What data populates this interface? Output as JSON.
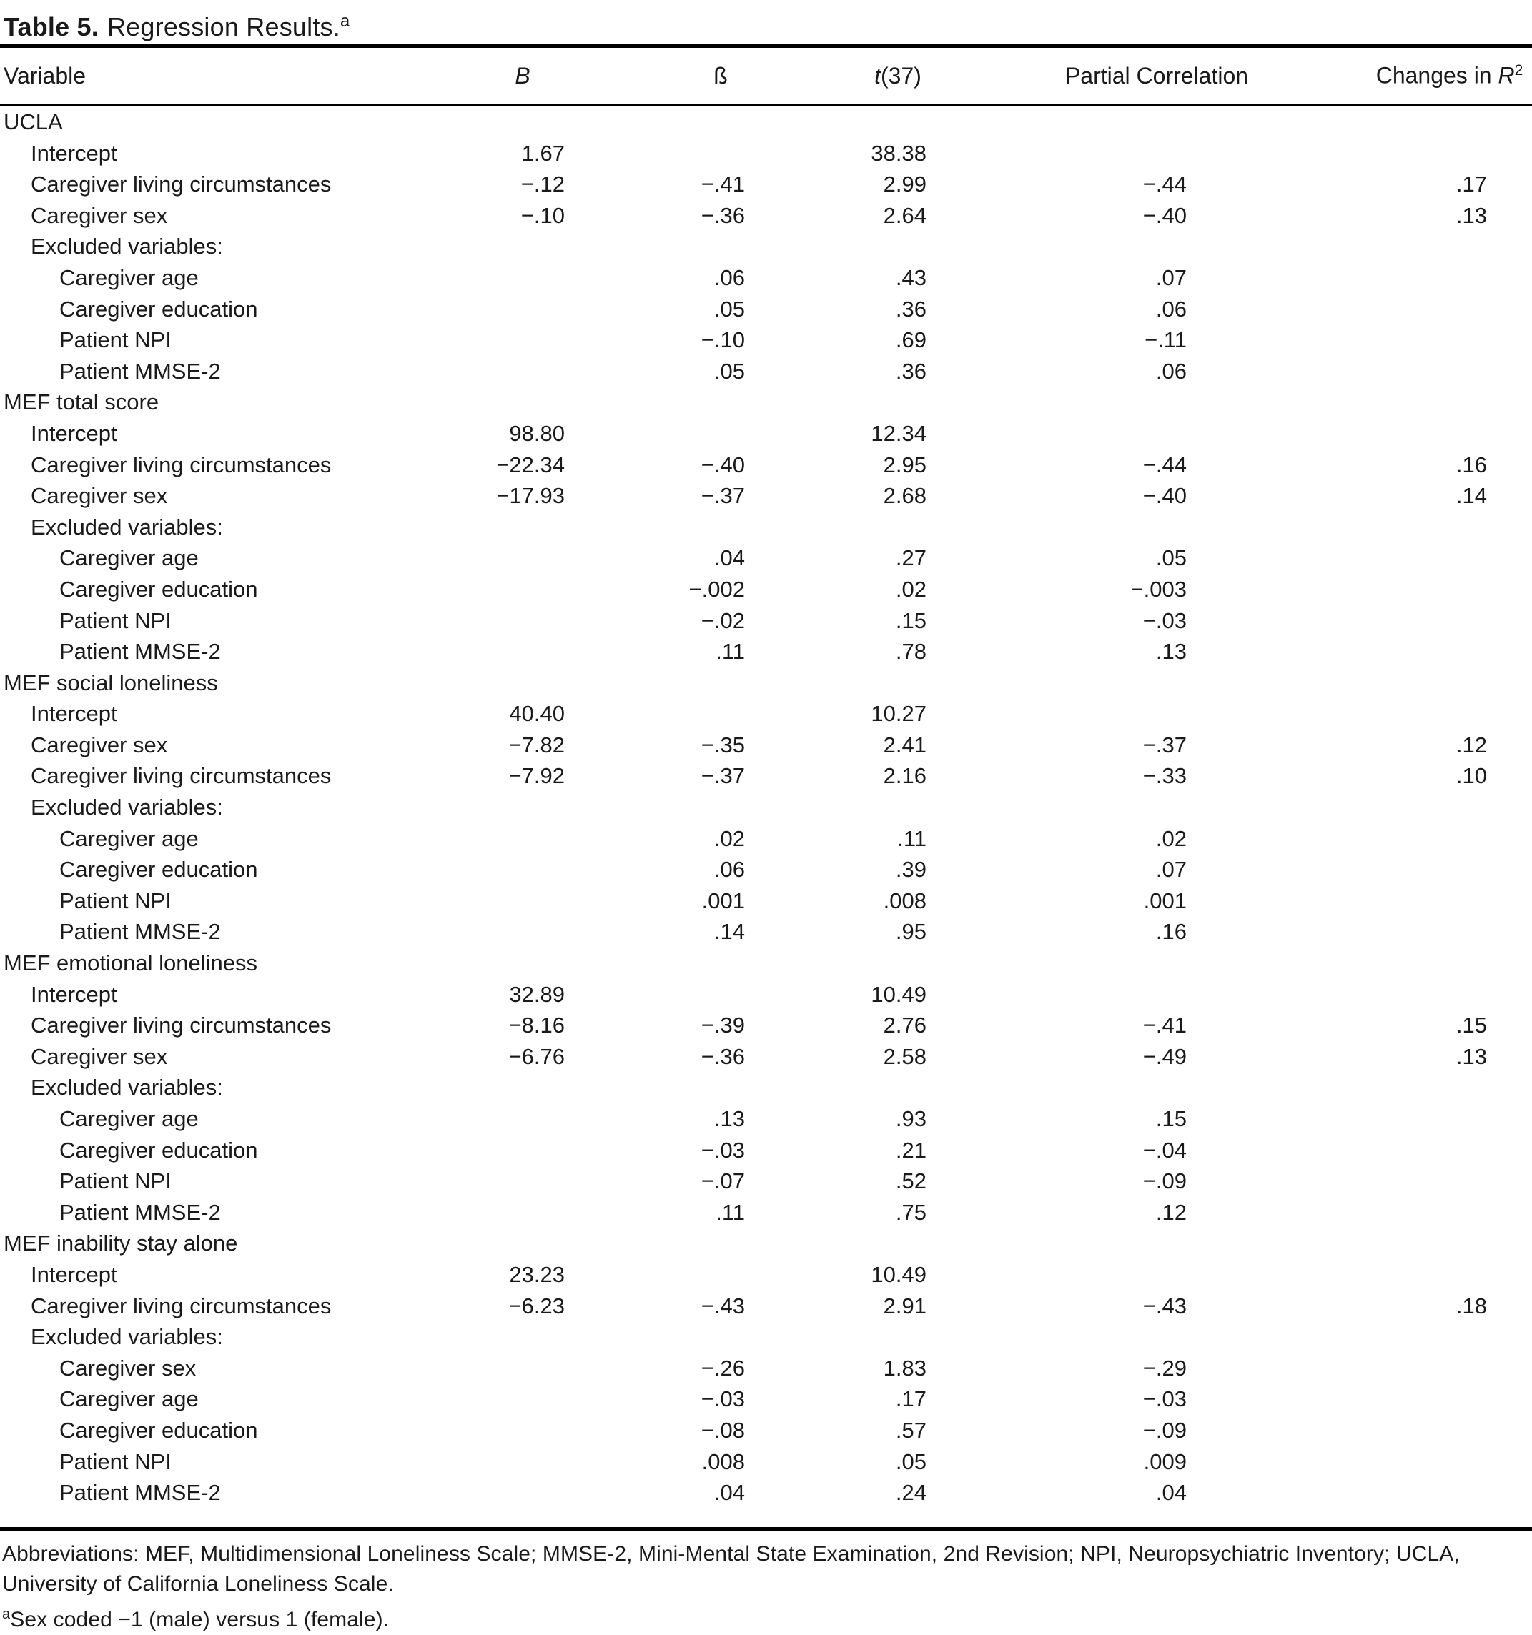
{
  "colors": {
    "ink": "#1a1a1a",
    "background": "#ffffff"
  },
  "title": {
    "label": "Table 5.",
    "caption": "Regression Results.",
    "footnote_marker": "a"
  },
  "table": {
    "columns": {
      "variable": "Variable",
      "b": "B",
      "beta": "ß",
      "t_symbol": "t",
      "t_args": "(37)",
      "partial": "Partial Correlation",
      "r2_prefix": "Changes in ",
      "r2_symbol": "R",
      "r2_sup": "2"
    },
    "rows": [
      {
        "label": "UCLA",
        "indent": 0
      },
      {
        "label": "Intercept",
        "indent": 1,
        "b": "1.67",
        "t": "38.38"
      },
      {
        "label": "Caregiver living circumstances",
        "indent": 1,
        "b": "−.12",
        "beta": "−.41",
        "t": "2.99",
        "pc": "−.44",
        "r2": ".17"
      },
      {
        "label": "Caregiver sex",
        "indent": 1,
        "b": "−.10",
        "beta": "−.36",
        "t": "2.64",
        "pc": "−.40",
        "r2": ".13"
      },
      {
        "label": "Excluded variables:",
        "indent": 1
      },
      {
        "label": "Caregiver age",
        "indent": 2,
        "beta": ".06",
        "t": ".43",
        "pc": ".07"
      },
      {
        "label": "Caregiver education",
        "indent": 2,
        "beta": ".05",
        "t": ".36",
        "pc": ".06"
      },
      {
        "label": "Patient NPI",
        "indent": 2,
        "beta": "−.10",
        "t": ".69",
        "pc": "−.11"
      },
      {
        "label": "Patient MMSE-2",
        "indent": 2,
        "beta": ".05",
        "t": ".36",
        "pc": ".06"
      },
      {
        "label": "MEF total score",
        "indent": 0
      },
      {
        "label": "Intercept",
        "indent": 1,
        "b": "98.80",
        "t": "12.34"
      },
      {
        "label": "Caregiver living circumstances",
        "indent": 1,
        "b": "−22.34",
        "beta": "−.40",
        "t": "2.95",
        "pc": "−.44",
        "r2": ".16"
      },
      {
        "label": "Caregiver sex",
        "indent": 1,
        "b": "−17.93",
        "beta": "−.37",
        "t": "2.68",
        "pc": "−.40",
        "r2": ".14"
      },
      {
        "label": "Excluded variables:",
        "indent": 1
      },
      {
        "label": "Caregiver age",
        "indent": 2,
        "beta": ".04",
        "t": ".27",
        "pc": ".05"
      },
      {
        "label": "Caregiver education",
        "indent": 2,
        "beta": "−.002",
        "t": ".02",
        "pc": "−.003"
      },
      {
        "label": "Patient NPI",
        "indent": 2,
        "beta": "−.02",
        "t": ".15",
        "pc": "−.03"
      },
      {
        "label": "Patient MMSE-2",
        "indent": 2,
        "beta": ".11",
        "t": ".78",
        "pc": ".13"
      },
      {
        "label": "MEF social loneliness",
        "indent": 0
      },
      {
        "label": "Intercept",
        "indent": 1,
        "b": "40.40",
        "t": "10.27"
      },
      {
        "label": "Caregiver sex",
        "indent": 1,
        "b": "−7.82",
        "beta": "−.35",
        "t": "2.41",
        "pc": "−.37",
        "r2": ".12"
      },
      {
        "label": "Caregiver living circumstances",
        "indent": 1,
        "b": "−7.92",
        "beta": "−.37",
        "t": "2.16",
        "pc": "−.33",
        "r2": ".10"
      },
      {
        "label": "Excluded variables:",
        "indent": 1
      },
      {
        "label": "Caregiver age",
        "indent": 2,
        "beta": ".02",
        "t": ".11",
        "pc": ".02"
      },
      {
        "label": "Caregiver education",
        "indent": 2,
        "beta": ".06",
        "t": ".39",
        "pc": ".07"
      },
      {
        "label": "Patient NPI",
        "indent": 2,
        "beta": ".001",
        "t": ".008",
        "pc": ".001"
      },
      {
        "label": "Patient MMSE-2",
        "indent": 2,
        "beta": ".14",
        "t": ".95",
        "pc": ".16"
      },
      {
        "label": "MEF emotional loneliness",
        "indent": 0
      },
      {
        "label": "Intercept",
        "indent": 1,
        "b": "32.89",
        "t": "10.49"
      },
      {
        "label": "Caregiver living circumstances",
        "indent": 1,
        "b": "−8.16",
        "beta": "−.39",
        "t": "2.76",
        "pc": "−.41",
        "r2": ".15"
      },
      {
        "label": "Caregiver sex",
        "indent": 1,
        "b": "−6.76",
        "beta": "−.36",
        "t": "2.58",
        "pc": "−.49",
        "r2": ".13"
      },
      {
        "label": "Excluded variables:",
        "indent": 1
      },
      {
        "label": "Caregiver age",
        "indent": 2,
        "beta": ".13",
        "t": ".93",
        "pc": ".15"
      },
      {
        "label": "Caregiver education",
        "indent": 2,
        "beta": "−.03",
        "t": ".21",
        "pc": "−.04"
      },
      {
        "label": "Patient NPI",
        "indent": 2,
        "beta": "−.07",
        "t": ".52",
        "pc": "−.09"
      },
      {
        "label": "Patient MMSE-2",
        "indent": 2,
        "beta": ".11",
        "t": ".75",
        "pc": ".12"
      },
      {
        "label": "MEF inability stay alone",
        "indent": 0
      },
      {
        "label": "Intercept",
        "indent": 1,
        "b": "23.23",
        "t": "10.49"
      },
      {
        "label": "Caregiver living circumstances",
        "indent": 1,
        "b": "−6.23",
        "beta": "−.43",
        "t": "2.91",
        "pc": "−.43",
        "r2": ".18"
      },
      {
        "label": "Excluded variables:",
        "indent": 1
      },
      {
        "label": "Caregiver sex",
        "indent": 2,
        "beta": "−.26",
        "t": "1.83",
        "pc": "−.29"
      },
      {
        "label": "Caregiver age",
        "indent": 2,
        "beta": "−.03",
        "t": ".17",
        "pc": "−.03"
      },
      {
        "label": "Caregiver education",
        "indent": 2,
        "beta": "−.08",
        "t": ".57",
        "pc": "−.09"
      },
      {
        "label": "Patient NPI",
        "indent": 2,
        "beta": ".008",
        "t": ".05",
        "pc": ".009"
      },
      {
        "label": "Patient MMSE-2",
        "indent": 2,
        "beta": ".04",
        "t": ".24",
        "pc": ".04"
      }
    ]
  },
  "footnotes": {
    "abbreviations": "Abbreviations: MEF, Multidimensional Loneliness Scale; MMSE-2, Mini-Mental State Examination, 2nd Revision; NPI, Neuropsychiatric Inventory; UCLA, University of California Loneliness Scale.",
    "marker": "a",
    "sex_coding": "Sex coded −1 (male) versus 1 (female)."
  }
}
